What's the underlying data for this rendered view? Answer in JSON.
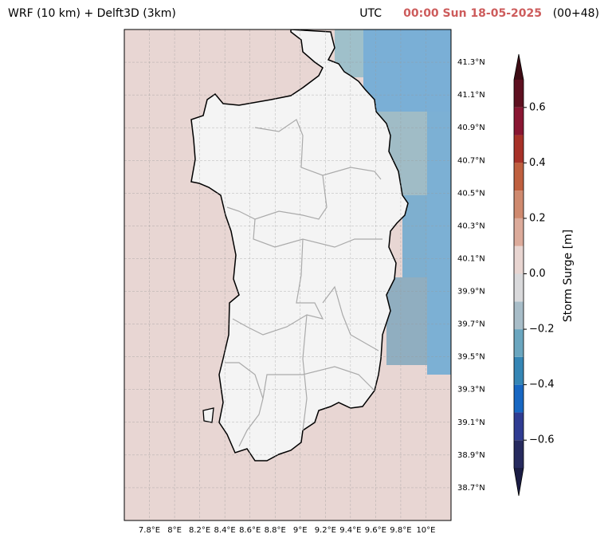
{
  "header": {
    "title": "WRF (10 km) + Delft3D (3km)",
    "timezone": "UTC",
    "valid_time": "00:00 Sun 18-05-2025",
    "forecast_step": "(00+48)"
  },
  "map": {
    "lon_range": [
      7.6,
      10.2
    ],
    "lat_range": [
      38.5,
      41.5
    ],
    "lon_ticks": [
      {
        "value": 7.8,
        "label": "7.8°E"
      },
      {
        "value": 8,
        "label": "8°E"
      },
      {
        "value": 8.2,
        "label": "8.2°E"
      },
      {
        "value": 8.4,
        "label": "8.4°E"
      },
      {
        "value": 8.6,
        "label": "8.6°E"
      },
      {
        "value": 8.8,
        "label": "8.8°E"
      },
      {
        "value": 9,
        "label": "9°E"
      },
      {
        "value": 9.2,
        "label": "9.2°E"
      },
      {
        "value": 9.4,
        "label": "9.4°E"
      },
      {
        "value": 9.6,
        "label": "9.6°E"
      },
      {
        "value": 9.8,
        "label": "9.8°E"
      },
      {
        "value": 10,
        "label": "10°E"
      }
    ],
    "lat_ticks": [
      {
        "value": 38.7,
        "label": "38.7°N"
      },
      {
        "value": 38.9,
        "label": "38.9°N"
      },
      {
        "value": 39.1,
        "label": "39.1°N"
      },
      {
        "value": 39.3,
        "label": "39.3°N"
      },
      {
        "value": 39.5,
        "label": "39.5°N"
      },
      {
        "value": 39.7,
        "label": "39.7°N"
      },
      {
        "value": 39.9,
        "label": "39.9°N"
      },
      {
        "value": 40.1,
        "label": "40.1°N"
      },
      {
        "value": 40.3,
        "label": "40.3°N"
      },
      {
        "value": 40.5,
        "label": "40.5°N"
      },
      {
        "value": 40.7,
        "label": "40.7°N"
      },
      {
        "value": 40.9,
        "label": "40.9°N"
      },
      {
        "value": 41.1,
        "label": "41.1°N"
      },
      {
        "value": 41.3,
        "label": "41.3°N"
      }
    ],
    "grid": true,
    "colorbar": {
      "label": "Storm Surge [m]",
      "levels": [
        -0.7,
        -0.6,
        -0.5,
        -0.4,
        -0.3,
        -0.2,
        -0.1,
        0,
        0.1,
        0.2,
        0.3,
        0.4,
        0.5,
        0.6,
        0.7
      ],
      "colors": [
        "#262a5e",
        "#2f3c92",
        "#1867c2",
        "#3586b5",
        "#6ba6bf",
        "#a8bdc8",
        "#d9d9db",
        "#e8d5d1",
        "#dcab9b",
        "#cf8a6f",
        "#bf603f",
        "#a73128",
        "#891632",
        "#5e1020"
      ],
      "extend_colors": [
        "#1b1d44",
        "#3d0c14"
      ],
      "ticks": [
        {
          "value": -0.6,
          "label": "−0.6"
        },
        {
          "value": -0.4,
          "label": "−0.4"
        },
        {
          "value": -0.2,
          "label": "−0.2"
        },
        {
          "value": 0,
          "label": "0.0"
        },
        0.2,
        0.4,
        0.6
      ]
    }
  }
}
